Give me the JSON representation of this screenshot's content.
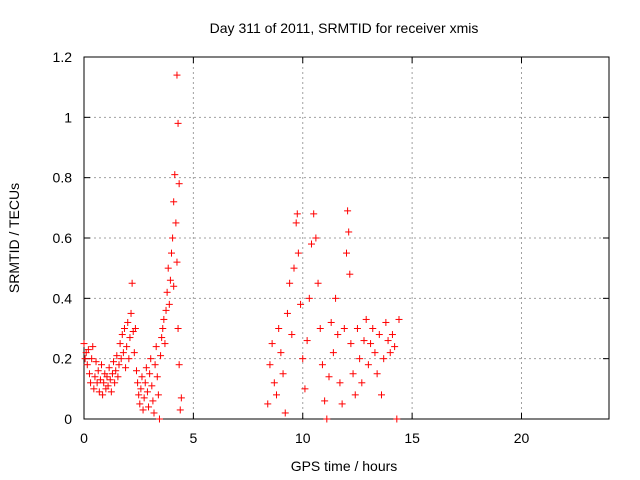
{
  "chart_data": {
    "type": "scatter",
    "title": "Day 311 of 2011, SRMTID for receiver xmis",
    "xlabel": "GPS time / hours",
    "ylabel": "SRMTID / TECUs",
    "xlim": [
      0,
      24
    ],
    "ylim": [
      0,
      1.2
    ],
    "x_ticks": [
      0,
      5,
      10,
      15,
      20
    ],
    "x_tick_labels": [
      "0",
      "5",
      "10",
      "15",
      "20"
    ],
    "y_ticks": [
      0,
      0.2,
      0.4,
      0.6,
      0.8,
      1.0,
      1.2
    ],
    "y_tick_labels": [
      "0",
      "0.2",
      "0.4",
      "0.6",
      "0.8",
      "1",
      "1.2"
    ],
    "grid": true,
    "marker": "plus",
    "marker_color": "#ff0000",
    "series": [
      {
        "name": "SRMTID",
        "color": "#ff0000",
        "points": [
          [
            0.0,
            0.25
          ],
          [
            0.05,
            0.2
          ],
          [
            0.1,
            0.22
          ],
          [
            0.15,
            0.18
          ],
          [
            0.2,
            0.23
          ],
          [
            0.25,
            0.15
          ],
          [
            0.3,
            0.12
          ],
          [
            0.35,
            0.2
          ],
          [
            0.4,
            0.24
          ],
          [
            0.45,
            0.1
          ],
          [
            0.5,
            0.14
          ],
          [
            0.55,
            0.19
          ],
          [
            0.6,
            0.12
          ],
          [
            0.65,
            0.16
          ],
          [
            0.7,
            0.09
          ],
          [
            0.75,
            0.13
          ],
          [
            0.8,
            0.18
          ],
          [
            0.85,
            0.08
          ],
          [
            0.9,
            0.12
          ],
          [
            0.95,
            0.15
          ],
          [
            1.0,
            0.1
          ],
          [
            1.05,
            0.14
          ],
          [
            1.1,
            0.11
          ],
          [
            1.15,
            0.17
          ],
          [
            1.2,
            0.13
          ],
          [
            1.25,
            0.09
          ],
          [
            1.3,
            0.15
          ],
          [
            1.35,
            0.19
          ],
          [
            1.4,
            0.12
          ],
          [
            1.45,
            0.16
          ],
          [
            1.5,
            0.21
          ],
          [
            1.55,
            0.14
          ],
          [
            1.6,
            0.18
          ],
          [
            1.65,
            0.25
          ],
          [
            1.7,
            0.2
          ],
          [
            1.75,
            0.28
          ],
          [
            1.8,
            0.22
          ],
          [
            1.85,
            0.3
          ],
          [
            1.9,
            0.17
          ],
          [
            1.95,
            0.24
          ],
          [
            2.0,
            0.32
          ],
          [
            2.05,
            0.2
          ],
          [
            2.1,
            0.27
          ],
          [
            2.15,
            0.35
          ],
          [
            2.2,
            0.45
          ],
          [
            2.25,
            0.29
          ],
          [
            2.3,
            0.22
          ],
          [
            2.35,
            0.3
          ],
          [
            2.4,
            0.16
          ],
          [
            2.45,
            0.12
          ],
          [
            2.5,
            0.08
          ],
          [
            2.55,
            0.05
          ],
          [
            2.6,
            0.1
          ],
          [
            2.65,
            0.14
          ],
          [
            2.7,
            0.03
          ],
          [
            2.75,
            0.07
          ],
          [
            2.8,
            0.12
          ],
          [
            2.85,
            0.17
          ],
          [
            2.9,
            0.09
          ],
          [
            2.95,
            0.04
          ],
          [
            3.0,
            0.15
          ],
          [
            3.05,
            0.2
          ],
          [
            3.1,
            0.11
          ],
          [
            3.15,
            0.06
          ],
          [
            3.2,
            0.02
          ],
          [
            3.25,
            0.18
          ],
          [
            3.3,
            0.24
          ],
          [
            3.35,
            0.14
          ],
          [
            3.4,
            0.08
          ],
          [
            3.45,
            0.0
          ],
          [
            3.5,
            0.21
          ],
          [
            3.55,
            0.27
          ],
          [
            3.6,
            0.3
          ],
          [
            3.65,
            0.33
          ],
          [
            3.7,
            0.25
          ],
          [
            3.75,
            0.36
          ],
          [
            3.8,
            0.42
          ],
          [
            3.85,
            0.5
          ],
          [
            3.9,
            0.38
          ],
          [
            3.95,
            0.46
          ],
          [
            4.0,
            0.55
          ],
          [
            4.05,
            0.6
          ],
          [
            4.1,
            0.72
          ],
          [
            4.15,
            0.81
          ],
          [
            4.2,
            0.65
          ],
          [
            4.25,
            0.52
          ],
          [
            4.3,
            0.3
          ],
          [
            4.35,
            0.18
          ],
          [
            4.4,
            0.03
          ],
          [
            4.45,
            0.07
          ],
          [
            4.25,
            1.14
          ],
          [
            4.3,
            0.98
          ],
          [
            4.35,
            0.78
          ],
          [
            4.1,
            0.44
          ],
          [
            8.4,
            0.05
          ],
          [
            8.5,
            0.18
          ],
          [
            8.6,
            0.25
          ],
          [
            8.7,
            0.12
          ],
          [
            8.8,
            0.08
          ],
          [
            8.9,
            0.3
          ],
          [
            9.0,
            0.22
          ],
          [
            9.1,
            0.15
          ],
          [
            9.2,
            0.02
          ],
          [
            9.3,
            0.35
          ],
          [
            9.4,
            0.45
          ],
          [
            9.5,
            0.28
          ],
          [
            9.6,
            0.5
          ],
          [
            9.7,
            0.65
          ],
          [
            9.75,
            0.68
          ],
          [
            9.8,
            0.55
          ],
          [
            9.9,
            0.38
          ],
          [
            10.0,
            0.2
          ],
          [
            10.1,
            0.1
          ],
          [
            10.2,
            0.26
          ],
          [
            10.3,
            0.4
          ],
          [
            10.4,
            0.58
          ],
          [
            10.5,
            0.68
          ],
          [
            10.6,
            0.6
          ],
          [
            10.7,
            0.45
          ],
          [
            10.8,
            0.3
          ],
          [
            10.9,
            0.18
          ],
          [
            11.0,
            0.06
          ],
          [
            11.1,
            0.0
          ],
          [
            11.2,
            0.14
          ],
          [
            11.3,
            0.32
          ],
          [
            11.4,
            0.22
          ],
          [
            11.5,
            0.4
          ],
          [
            11.6,
            0.28
          ],
          [
            11.7,
            0.12
          ],
          [
            11.8,
            0.05
          ],
          [
            11.9,
            0.3
          ],
          [
            12.0,
            0.55
          ],
          [
            12.05,
            0.69
          ],
          [
            12.1,
            0.62
          ],
          [
            12.15,
            0.48
          ],
          [
            12.2,
            0.25
          ],
          [
            12.3,
            0.15
          ],
          [
            12.4,
            0.08
          ],
          [
            12.5,
            0.3
          ],
          [
            12.6,
            0.2
          ],
          [
            12.7,
            0.12
          ],
          [
            12.8,
            0.26
          ],
          [
            12.9,
            0.33
          ],
          [
            13.0,
            0.18
          ],
          [
            13.1,
            0.25
          ],
          [
            13.2,
            0.3
          ],
          [
            13.3,
            0.22
          ],
          [
            13.4,
            0.15
          ],
          [
            13.5,
            0.28
          ],
          [
            13.6,
            0.08
          ],
          [
            13.7,
            0.2
          ],
          [
            13.8,
            0.32
          ],
          [
            13.9,
            0.26
          ],
          [
            14.0,
            0.22
          ],
          [
            14.1,
            0.28
          ],
          [
            14.2,
            0.24
          ],
          [
            14.3,
            0.0
          ],
          [
            14.4,
            0.33
          ]
        ]
      }
    ]
  }
}
